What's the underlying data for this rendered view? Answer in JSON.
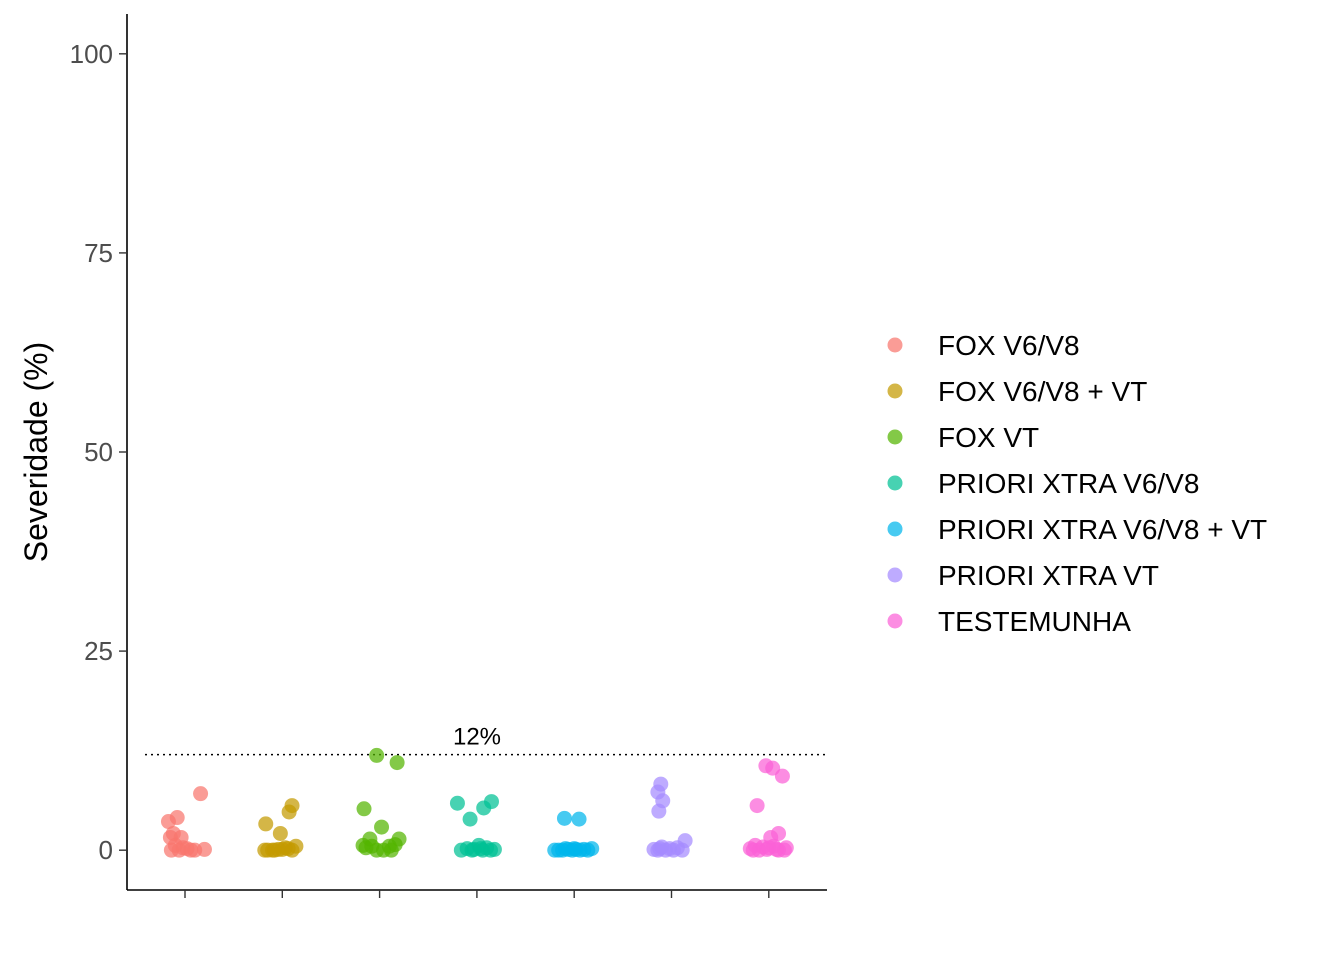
{
  "chart_data": {
    "type": "scatter",
    "title": "",
    "xlabel": "",
    "ylabel": "Severidade (%)",
    "ylim": [
      -5,
      105
    ],
    "yticks": [
      0,
      25,
      50,
      75,
      100
    ],
    "grid": false,
    "legend_position": "right",
    "reference_line": {
      "y": 12,
      "style": "dotted",
      "label": "12%"
    },
    "categories": [
      "FOX V6/V8",
      "FOX V6/V8 + VT",
      "FOX VT",
      "PRIORI XTRA V6/V8",
      "PRIORI XTRA V6/V8 + VT",
      "PRIORI XTRA VT",
      "TESTEMUNHA"
    ],
    "series": [
      {
        "name": "FOX V6/V8",
        "color": "#F8766D",
        "points": [
          [
            -0.17,
            3.6
          ],
          [
            -0.08,
            4.1
          ],
          [
            -0.15,
            1.6
          ],
          [
            -0.04,
            1.6
          ],
          [
            -0.12,
            2.1
          ],
          [
            -0.1,
            0.6
          ],
          [
            -0.02,
            0.3
          ],
          [
            0.06,
            0
          ],
          [
            0.1,
            0
          ],
          [
            0.16,
            7.1
          ],
          [
            -0.14,
            0
          ],
          [
            0.2,
            0.1
          ],
          [
            -0.06,
            0
          ],
          [
            0.02,
            0.2
          ]
        ]
      },
      {
        "name": "FOX V6/V8 + VT",
        "color": "#C49A00",
        "points": [
          [
            -0.17,
            3.3
          ],
          [
            -0.02,
            2.1
          ],
          [
            0.07,
            4.8
          ],
          [
            0.1,
            5.6
          ],
          [
            -0.18,
            0
          ],
          [
            -0.15,
            0
          ],
          [
            -0.08,
            0
          ],
          [
            -0.04,
            0.1
          ],
          [
            0.03,
            0.3
          ],
          [
            0.1,
            0
          ],
          [
            0.14,
            0.5
          ],
          [
            -0.1,
            0
          ],
          [
            0.0,
            0.1
          ],
          [
            0.06,
            0.2
          ]
        ]
      },
      {
        "name": "FOX VT",
        "color": "#53B400",
        "points": [
          [
            -0.03,
            11.9
          ],
          [
            0.18,
            11
          ],
          [
            -0.16,
            5.2
          ],
          [
            0.02,
            2.9
          ],
          [
            -0.1,
            1.4
          ],
          [
            0.2,
            1.4
          ],
          [
            -0.17,
            0.6
          ],
          [
            -0.14,
            0.3
          ],
          [
            -0.08,
            0.5
          ],
          [
            -0.03,
            0
          ],
          [
            0.04,
            0
          ],
          [
            0.1,
            0.5
          ],
          [
            0.16,
            0.7
          ],
          [
            0.12,
            0
          ]
        ]
      },
      {
        "name": "PRIORI XTRA V6/V8",
        "color": "#00C094",
        "points": [
          [
            -0.2,
            5.9
          ],
          [
            -0.07,
            3.9
          ],
          [
            0.07,
            5.3
          ],
          [
            0.15,
            6.1
          ],
          [
            -0.16,
            0
          ],
          [
            -0.1,
            0.2
          ],
          [
            -0.03,
            0.1
          ],
          [
            0.02,
            0.6
          ],
          [
            0.06,
            0
          ],
          [
            0.1,
            0.3
          ],
          [
            0.14,
            0
          ],
          [
            0.18,
            0.1
          ],
          [
            -0.05,
            0
          ],
          [
            0.04,
            0.2
          ]
        ]
      },
      {
        "name": "PRIORI XTRA V6/V8 + VT",
        "color": "#00B6EB",
        "points": [
          [
            -0.1,
            4
          ],
          [
            0.05,
            3.9
          ],
          [
            -0.2,
            0
          ],
          [
            -0.16,
            0
          ],
          [
            -0.12,
            0
          ],
          [
            -0.06,
            0.1
          ],
          [
            -0.02,
            0
          ],
          [
            0.02,
            0.1
          ],
          [
            0.06,
            0
          ],
          [
            0.1,
            0.1
          ],
          [
            0.14,
            0
          ],
          [
            0.18,
            0.2
          ],
          [
            -0.09,
            0.2
          ],
          [
            0.0,
            0.2
          ]
        ]
      },
      {
        "name": "PRIORI XTRA VT",
        "color": "#A58AFF",
        "points": [
          [
            -0.11,
            8.3
          ],
          [
            -0.14,
            7.3
          ],
          [
            -0.09,
            6.2
          ],
          [
            -0.13,
            4.9
          ],
          [
            0.14,
            1.2
          ],
          [
            -0.18,
            0.1
          ],
          [
            -0.14,
            0
          ],
          [
            -0.1,
            0.4
          ],
          [
            -0.06,
            0
          ],
          [
            -0.02,
            0.2
          ],
          [
            0.02,
            0
          ],
          [
            0.06,
            0.3
          ],
          [
            0.11,
            0
          ],
          [
            -0.12,
            0.2
          ]
        ]
      },
      {
        "name": "TESTEMUNHA",
        "color": "#FB61D7",
        "points": [
          [
            -0.03,
            10.6
          ],
          [
            0.04,
            10.3
          ],
          [
            0.14,
            9.3
          ],
          [
            -0.12,
            5.6
          ],
          [
            0.1,
            2.1
          ],
          [
            0.02,
            1.6
          ],
          [
            -0.19,
            0.2
          ],
          [
            -0.14,
            0.6
          ],
          [
            -0.1,
            0
          ],
          [
            -0.06,
            0.4
          ],
          [
            -0.02,
            0.1
          ],
          [
            0.05,
            0.5
          ],
          [
            0.1,
            0
          ],
          [
            0.18,
            0.3
          ],
          [
            -0.16,
            0
          ],
          [
            0.0,
            0.3
          ],
          [
            0.08,
            0.1
          ],
          [
            0.16,
            0
          ]
        ]
      }
    ]
  }
}
